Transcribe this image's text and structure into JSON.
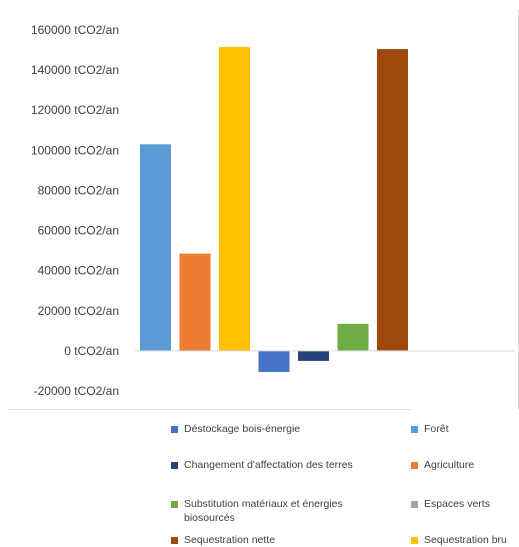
{
  "chart_data": {
    "type": "bar",
    "ylim": [
      -20000,
      160000
    ],
    "yticks": [
      "160000 tCO2/an",
      "140000 tCO2/an",
      "120000 tCO2/an",
      "100000 tCO2/an",
      "80000 tCO2/an",
      "60000 tCO2/an",
      "40000 tCO2/an",
      "20000 tCO2/an",
      "0 tCO2/an",
      "-20000 tCO2/an"
    ],
    "ytick_values": [
      160000,
      140000,
      120000,
      100000,
      80000,
      60000,
      40000,
      20000,
      0,
      -20000
    ],
    "grid": false,
    "legend_position": "bottom",
    "series": [
      {
        "name": "Déstockage bois-énergie",
        "value": -10500,
        "color": "#4472C4"
      },
      {
        "name": "Forêt",
        "value": 103000,
        "color": "#5B9BD5"
      },
      {
        "name": "Changement d'affectation des terres",
        "value": -5000,
        "color": "#264478"
      },
      {
        "name": "Agriculture",
        "value": 48500,
        "color": "#ED7D31"
      },
      {
        "name": "Substitution matériaux et énergies biosourcés",
        "value": 13500,
        "color": "#70AD47"
      },
      {
        "name": "Espaces verts",
        "value": 0,
        "color": "#A5A5A5"
      },
      {
        "name": "Sequestration nette",
        "value": 150500,
        "color": "#9E480E"
      },
      {
        "name": "Sequestration brute",
        "value": 151500,
        "color": "#FFC000"
      }
    ],
    "draw_order": [
      1,
      3,
      7,
      0,
      2,
      4,
      6
    ]
  },
  "legend": {
    "items": [
      {
        "label": "Déstockage bois-énergie",
        "color": "#4472C4"
      },
      {
        "label": "Forêt",
        "color": "#5B9BD5"
      },
      {
        "label": "Changement d'affectation des terres",
        "color": "#264478"
      },
      {
        "label": "Agriculture",
        "color": "#ED7D31"
      },
      {
        "label": "Substitution matériaux et énergies biosourcés",
        "color": "#70AD47"
      },
      {
        "label": "Espaces verts",
        "color": "#A5A5A5"
      },
      {
        "label": "Sequestration nette",
        "color": "#9E480E"
      },
      {
        "label": "Sequestration bru",
        "color": "#FFC000"
      }
    ]
  }
}
